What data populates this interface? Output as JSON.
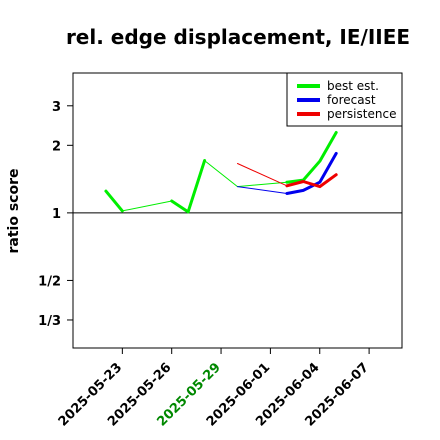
{
  "chart_data": {
    "type": "line",
    "title": "rel. edge displacement, IE/IIEE",
    "xlabel": "",
    "ylabel": "ratio score",
    "y_scale": "log",
    "y_ticks": [
      {
        "value": 0.3333,
        "label": "1/3"
      },
      {
        "value": 0.5,
        "label": "1/2"
      },
      {
        "value": 1,
        "label": "1"
      },
      {
        "value": 2,
        "label": "2"
      },
      {
        "value": 3,
        "label": "3"
      }
    ],
    "ylim": [
      0.25,
      4.2
    ],
    "xlim": [
      "2025-05-20",
      "2025-06-09"
    ],
    "x_ticks": [
      {
        "date": "2025-05-23",
        "label": "2025-05-23",
        "color": "#000000"
      },
      {
        "date": "2025-05-26",
        "label": "2025-05-26",
        "color": "#000000"
      },
      {
        "date": "2025-05-29",
        "label": "2025-05-29",
        "color": "#008800"
      },
      {
        "date": "2025-06-01",
        "label": "2025-06-01",
        "color": "#000000"
      },
      {
        "date": "2025-06-04",
        "label": "2025-06-04",
        "color": "#000000"
      },
      {
        "date": "2025-06-07",
        "label": "2025-06-07",
        "color": "#000000"
      }
    ],
    "reference_line": 1,
    "legend": {
      "position": "top-right",
      "entries": [
        {
          "name": "best est.",
          "color": "#00ee00"
        },
        {
          "name": "forecast",
          "color": "#0000ee"
        },
        {
          "name": "persistence",
          "color": "#ee0000"
        }
      ]
    },
    "series": [
      {
        "name": "best est.",
        "color": "#00ee00",
        "segments": [
          {
            "width": 3,
            "points": [
              [
                "2025-05-22",
                1.25
              ],
              [
                "2025-05-23",
                1.02
              ]
            ]
          },
          {
            "width": 1,
            "points": [
              [
                "2025-05-23",
                1.02
              ],
              [
                "2025-05-26",
                1.13
              ]
            ]
          },
          {
            "width": 3,
            "points": [
              [
                "2025-05-26",
                1.13
              ],
              [
                "2025-05-27",
                1.01
              ],
              [
                "2025-05-28",
                1.71
              ]
            ]
          },
          {
            "width": 1,
            "points": [
              [
                "2025-05-28",
                1.71
              ],
              [
                "2025-05-30",
                1.31
              ],
              [
                "2025-06-02",
                1.37
              ]
            ]
          },
          {
            "width": 3,
            "points": [
              [
                "2025-06-02",
                1.37
              ],
              [
                "2025-06-03",
                1.4
              ],
              [
                "2025-06-04",
                1.7
              ],
              [
                "2025-06-05",
                2.28
              ]
            ]
          }
        ]
      },
      {
        "name": "forecast",
        "color": "#0000ee",
        "segments": [
          {
            "width": 1,
            "points": [
              [
                "2025-05-30",
                1.31
              ],
              [
                "2025-06-02",
                1.22
              ]
            ]
          },
          {
            "width": 3,
            "points": [
              [
                "2025-06-02",
                1.22
              ],
              [
                "2025-06-03",
                1.26
              ],
              [
                "2025-06-04",
                1.37
              ],
              [
                "2025-06-05",
                1.84
              ]
            ]
          }
        ]
      },
      {
        "name": "persistence",
        "color": "#ee0000",
        "segments": [
          {
            "width": 1,
            "points": [
              [
                "2025-05-30",
                1.66
              ],
              [
                "2025-06-02",
                1.32
              ]
            ]
          },
          {
            "width": 3,
            "points": [
              [
                "2025-06-02",
                1.32
              ],
              [
                "2025-06-03",
                1.38
              ],
              [
                "2025-06-04",
                1.31
              ],
              [
                "2025-06-05",
                1.48
              ]
            ]
          }
        ]
      }
    ]
  }
}
